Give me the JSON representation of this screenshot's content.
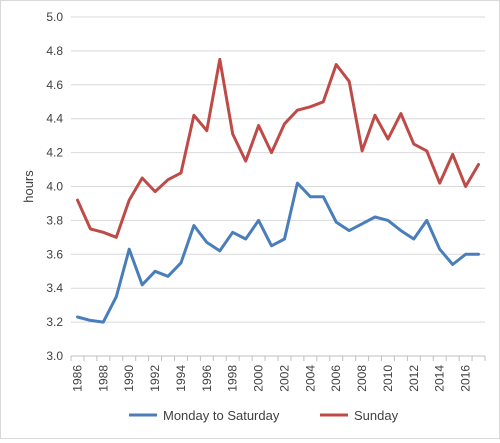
{
  "chart_data": {
    "type": "line",
    "title": "",
    "xlabel": "",
    "ylabel": "hours",
    "x": [
      1986,
      1987,
      1988,
      1989,
      1990,
      1991,
      1992,
      1993,
      1994,
      1995,
      1996,
      1997,
      1998,
      1999,
      2000,
      2001,
      2002,
      2003,
      2004,
      2005,
      2006,
      2007,
      2008,
      2009,
      2010,
      2011,
      2012,
      2013,
      2014,
      2015,
      2016,
      2017
    ],
    "xticks": [
      "1986",
      "1988",
      "1990",
      "1992",
      "1994",
      "1996",
      "1998",
      "2000",
      "2002",
      "2004",
      "2006",
      "2008",
      "2010",
      "2012",
      "2014",
      "2016"
    ],
    "ylim": [
      3.0,
      5.0
    ],
    "yticks": [
      "3.0",
      "3.2",
      "3.4",
      "3.6",
      "3.8",
      "4.0",
      "4.2",
      "4.4",
      "4.6",
      "4.8",
      "5.0"
    ],
    "grid": "horizontal",
    "legend_position": "bottom",
    "series": [
      {
        "name": "Monday to Saturday",
        "color": "#4a7ebb",
        "values": [
          3.23,
          3.21,
          3.2,
          3.35,
          3.63,
          3.42,
          3.5,
          3.47,
          3.55,
          3.77,
          3.67,
          3.62,
          3.73,
          3.69,
          3.8,
          3.65,
          3.69,
          4.02,
          3.94,
          3.94,
          3.79,
          3.74,
          3.78,
          3.82,
          3.8,
          3.74,
          3.69,
          3.8,
          3.63,
          3.54,
          3.6,
          3.6
        ]
      },
      {
        "name": "Sunday",
        "color": "#be4b48",
        "values": [
          3.92,
          3.75,
          3.73,
          3.7,
          3.92,
          4.05,
          3.97,
          4.04,
          4.08,
          4.42,
          4.33,
          4.75,
          4.31,
          4.15,
          4.36,
          4.2,
          4.37,
          4.45,
          4.47,
          4.5,
          4.72,
          4.62,
          4.21,
          4.42,
          4.28,
          4.43,
          4.25,
          4.21,
          4.02,
          4.19,
          4.0,
          4.13
        ]
      }
    ]
  }
}
